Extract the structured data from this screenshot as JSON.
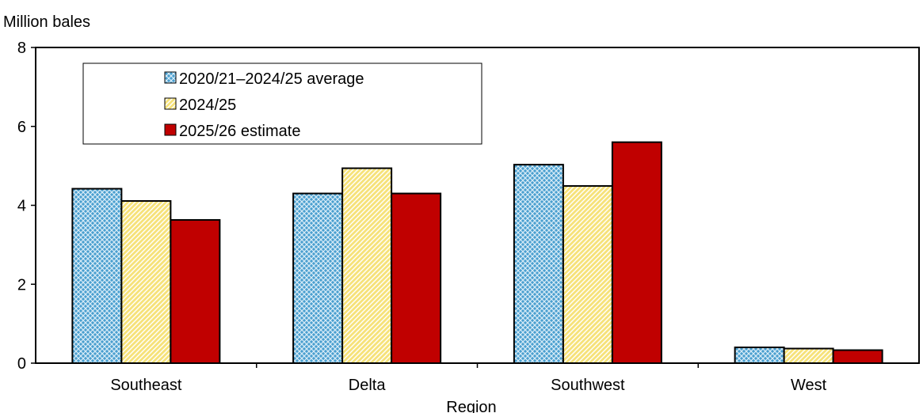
{
  "chart_data": {
    "type": "bar",
    "title": "",
    "ylabel": "Million bales",
    "xlabel": "Region",
    "ylim": [
      0,
      8
    ],
    "yticks": [
      0,
      2,
      4,
      6,
      8
    ],
    "grid": false,
    "legend_position": "top-left",
    "categories": [
      "Southeast",
      "Delta",
      "Southwest",
      "West"
    ],
    "series": [
      {
        "name": "2020/21–2024/25 average",
        "values": [
          4.42,
          4.3,
          5.03,
          0.4
        ],
        "color": "#4a9fcf",
        "pattern": "crosshatch-blue"
      },
      {
        "name": "2024/25",
        "values": [
          4.11,
          4.94,
          4.49,
          0.37
        ],
        "color": "#f4e48c",
        "pattern": "diagonal-yellow"
      },
      {
        "name": "2025/26 estimate",
        "values": [
          3.63,
          4.3,
          5.6,
          0.33
        ],
        "color": "#c00000",
        "pattern": "solid-red"
      }
    ]
  }
}
